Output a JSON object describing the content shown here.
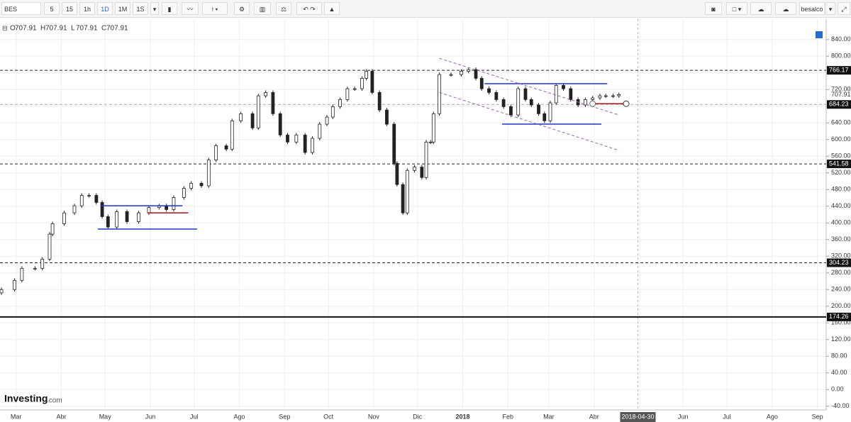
{
  "toolbar": {
    "symbol": "BES",
    "intervals": [
      "5",
      "15",
      "1h",
      "1D",
      "1M",
      "1S"
    ],
    "active_interval": "1D",
    "user": "besalco"
  },
  "logo": {
    "name": "Investing",
    "suffix": ".com"
  },
  "chart_data": {
    "type": "candlestick",
    "header": [
      {
        "label": "O",
        "value": 707.91
      },
      {
        "label": "H",
        "value": 707.91
      },
      {
        "label": "L",
        "value": 707.91
      },
      {
        "label": "C",
        "value": 707.91
      }
    ],
    "x": [
      -10,
      -1,
      4,
      13,
      18,
      23,
      25,
      33,
      40,
      45,
      50,
      55,
      59,
      63,
      69,
      76,
      84,
      91,
      98,
      103,
      108,
      115,
      120,
      127,
      132,
      137,
      144,
      148,
      154,
      162,
      166,
      171,
      176,
      181,
      186,
      192,
      198,
      203,
      208,
      213,
      217,
      222,
      227,
      232,
      237,
      240,
      244,
      249,
      254,
      259,
      261,
      265,
      268,
      273,
      278,
      281,
      284,
      286,
      290,
      298,
      305,
      310,
      315,
      319,
      324,
      329,
      334,
      339,
      344,
      349,
      353,
      358,
      362,
      366,
      370,
      375,
      380,
      385,
      390,
      395,
      400,
      404,
      409,
      413
    ],
    "open": [
      232,
      240,
      262,
      291,
      291,
      313,
      373,
      398,
      424,
      441,
      466,
      466,
      449,
      415,
      390,
      427,
      403,
      424,
      437,
      441,
      432,
      461,
      483,
      495,
      489,
      551,
      585,
      577,
      645,
      662,
      628,
      705,
      713,
      662,
      611,
      594,
      611,
      569,
      603,
      637,
      654,
      679,
      696,
      722,
      722,
      747,
      764,
      713,
      671,
      637,
      543,
      492,
      424,
      526,
      534,
      509,
      594,
      594,
      662,
      756,
      756,
      764,
      768,
      747,
      722,
      713,
      696,
      679,
      659,
      722,
      696,
      683,
      662,
      645,
      688,
      730,
      722,
      696,
      683,
      696,
      700,
      705,
      705,
      705
    ],
    "high": [
      245,
      267,
      296,
      296,
      318,
      378,
      403,
      429,
      446,
      471,
      471,
      471,
      454,
      420,
      432,
      432,
      429,
      442,
      446,
      446,
      466,
      488,
      500,
      500,
      556,
      590,
      590,
      650,
      667,
      667,
      710,
      718,
      718,
      667,
      616,
      616,
      616,
      608,
      642,
      659,
      684,
      701,
      727,
      727,
      752,
      769,
      769,
      718,
      676,
      642,
      548,
      497,
      531,
      539,
      539,
      599,
      599,
      667,
      761,
      761,
      769,
      773,
      773,
      752,
      727,
      718,
      701,
      684,
      727,
      727,
      701,
      688,
      667,
      693,
      735,
      735,
      727,
      701,
      701,
      705,
      710,
      710,
      710,
      712.91
    ],
    "low": [
      227,
      235,
      257,
      286,
      286,
      308,
      368,
      393,
      419,
      436,
      461,
      444,
      410,
      385,
      385,
      398,
      398,
      419,
      432,
      427,
      427,
      456,
      478,
      484,
      484,
      546,
      572,
      572,
      640,
      623,
      623,
      700,
      657,
      606,
      589,
      589,
      564,
      564,
      598,
      632,
      649,
      674,
      691,
      717,
      717,
      742,
      708,
      666,
      632,
      538,
      487,
      419,
      419,
      521,
      504,
      504,
      589,
      589,
      657,
      751,
      751,
      759,
      742,
      717,
      708,
      691,
      674,
      654,
      654,
      691,
      678,
      657,
      640,
      640,
      683,
      717,
      691,
      678,
      678,
      691,
      695,
      700,
      700,
      700
    ],
    "close": [
      240,
      262,
      291,
      291,
      313,
      373,
      398,
      424,
      441,
      466,
      466,
      449,
      415,
      390,
      427,
      403,
      424,
      437,
      441,
      432,
      461,
      483,
      495,
      489,
      551,
      585,
      577,
      645,
      662,
      628,
      705,
      713,
      662,
      611,
      594,
      611,
      569,
      603,
      637,
      654,
      679,
      696,
      722,
      722,
      747,
      764,
      713,
      671,
      637,
      543,
      492,
      424,
      526,
      534,
      509,
      594,
      594,
      662,
      756,
      756,
      764,
      768,
      747,
      722,
      713,
      696,
      679,
      659,
      722,
      696,
      683,
      662,
      645,
      688,
      730,
      722,
      696,
      683,
      696,
      700,
      705,
      705,
      705,
      707.91
    ],
    "up_color": "#ffffff",
    "down_color": "#222222",
    "xlim": [
      -11,
      555
    ],
    "ylim": [
      -49,
      889
    ],
    "xticks": [
      {
        "value": 0,
        "label": "Mar"
      },
      {
        "value": 31,
        "label": "Abr"
      },
      {
        "value": 61,
        "label": "May"
      },
      {
        "value": 92,
        "label": "Jun"
      },
      {
        "value": 122,
        "label": "Jul"
      },
      {
        "value": 153,
        "label": "Ago"
      },
      {
        "value": 184,
        "label": "Sep"
      },
      {
        "value": 214,
        "label": "Oct"
      },
      {
        "value": 245,
        "label": "Nov"
      },
      {
        "value": 275,
        "label": "Dic"
      },
      {
        "value": 306,
        "label": "2018"
      },
      {
        "value": 337,
        "label": "Feb"
      },
      {
        "value": 365,
        "label": "Mar"
      },
      {
        "value": 396,
        "label": "Abr"
      },
      {
        "value": 457,
        "label": "Jun"
      },
      {
        "value": 487,
        "label": "Jul"
      },
      {
        "value": 518,
        "label": "Ago"
      },
      {
        "value": 549,
        "label": "Sep"
      }
    ],
    "crosshair": {
      "value": 426,
      "label": "2018-04-30"
    },
    "yticks": [
      {
        "value": -40,
        "label": "-40.00"
      },
      {
        "value": 0,
        "label": "0.00"
      },
      {
        "value": 40,
        "label": "40.00"
      },
      {
        "value": 80,
        "label": "80.00"
      },
      {
        "value": 120,
        "label": "120.00"
      },
      {
        "value": 160,
        "label": "160.00"
      },
      {
        "value": 200,
        "label": "200.00"
      },
      {
        "value": 240,
        "label": "240.00"
      },
      {
        "value": 280,
        "label": "280.00"
      },
      {
        "value": 320,
        "label": "320.00"
      },
      {
        "value": 360,
        "label": "360.00"
      },
      {
        "value": 400,
        "label": "400.00"
      },
      {
        "value": 440,
        "label": "440.00"
      },
      {
        "value": 480,
        "label": "480.00"
      },
      {
        "value": 520,
        "label": "520.00"
      },
      {
        "value": 560,
        "label": "560.00"
      },
      {
        "value": 600,
        "label": "600.00"
      },
      {
        "value": 640,
        "label": "640.00"
      },
      {
        "value": 680,
        "label": "680.00"
      },
      {
        "value": 720,
        "label": "720.00"
      },
      {
        "value": 760,
        "label": "760.00"
      },
      {
        "value": 800,
        "label": "800.00"
      },
      {
        "value": 840,
        "label": "840.00"
      }
    ],
    "grid": true,
    "last_price": 707.91,
    "levels": [
      {
        "value": 766.17,
        "style": "dashed",
        "color": "#222222"
      },
      {
        "value": 684.23,
        "style": "dashed",
        "color": "#aaaaaa"
      },
      {
        "value": 541.58,
        "style": "dashed",
        "color": "#222222"
      },
      {
        "value": 304.23,
        "style": "dashed",
        "color": "#222222"
      },
      {
        "value": 174.26,
        "style": "solid",
        "color": "#111111"
      }
    ],
    "drawings": [
      {
        "x": [
          58,
          114
        ],
        "y": [
          441,
          441
        ],
        "color": "#2233cc",
        "style": "solid"
      },
      {
        "x": [
          56,
          124
        ],
        "y": [
          385,
          385
        ],
        "color": "#2233cc",
        "style": "solid"
      },
      {
        "x": [
          90,
          118
        ],
        "y": [
          424,
          424
        ],
        "color": "#aa1111",
        "style": "solid"
      },
      {
        "x": [
          321,
          405
        ],
        "y": [
          734,
          734
        ],
        "color": "#2233cc",
        "style": "solid"
      },
      {
        "x": [
          333,
          401
        ],
        "y": [
          637,
          637
        ],
        "color": "#2233cc",
        "style": "solid"
      },
      {
        "x": [
          395,
          418
        ],
        "y": [
          686,
          686
        ],
        "color": "#aa1111",
        "style": "solid"
      },
      {
        "x": [
          290,
          413
        ],
        "y": [
          795,
          659
        ],
        "color": "#9966aa",
        "style": "dashed"
      },
      {
        "x": [
          290,
          413
        ],
        "y": [
          713,
          574
        ],
        "color": "#9966aa",
        "style": "dashed"
      }
    ]
  }
}
